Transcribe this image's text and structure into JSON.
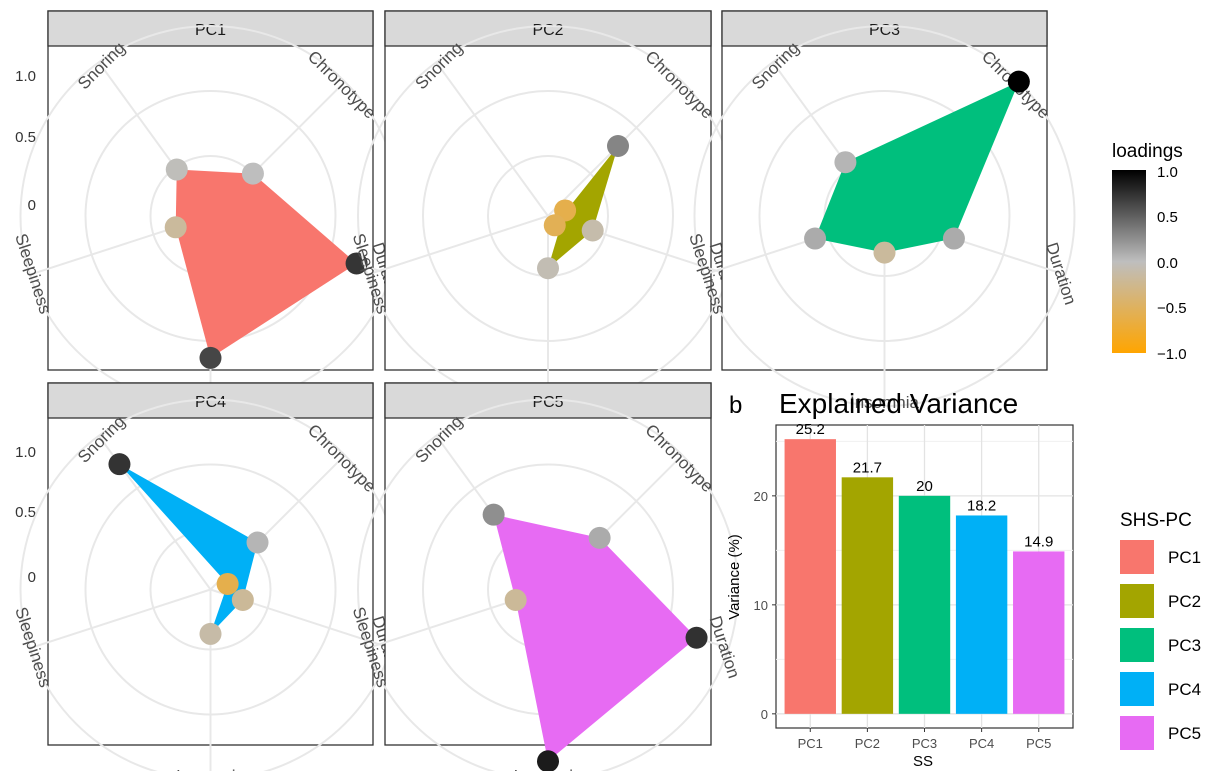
{
  "chart_data": [
    {
      "type": "radar",
      "panels": [
        "PC1",
        "PC2",
        "PC3",
        "PC4",
        "PC5"
      ],
      "axes": [
        "Chronotype",
        "Duration",
        "Insomnia",
        "Sleepiness",
        "Snoring"
      ],
      "radial_ticks": [
        "0",
        "0.5",
        "1.0"
      ],
      "series": [
        {
          "panel": "PC1",
          "color": "#F8766D",
          "values": [
            0.0,
            0.72,
            0.63,
            -0.18,
            -0.02
          ]
        },
        {
          "panel": "PC2",
          "color": "#A3A500",
          "values": [
            0.3,
            -0.1,
            -0.06,
            -0.6,
            -0.55
          ]
        },
        {
          "panel": "PC3",
          "color": "#00BF7D",
          "values": [
            1.0,
            0.1,
            -0.18,
            0.1,
            0.05
          ]
        },
        {
          "panel": "PC4",
          "color": "#00B0F6",
          "values": [
            0.05,
            -0.2,
            -0.12,
            -0.6,
            0.73
          ]
        },
        {
          "panel": "PC5",
          "color": "#E76BF3",
          "values": [
            0.1,
            0.74,
            0.86,
            -0.2,
            0.25
          ]
        }
      ],
      "legend": {
        "title": "loadings",
        "ticks": [
          "1.0",
          "0.5",
          "0.0",
          "−0.5",
          "−1.0"
        ],
        "colors": {
          "high": "#000000",
          "mid": "#bebebe",
          "low": "#FFA500"
        }
      }
    },
    {
      "type": "bar",
      "panel_label": "b",
      "title": "Explained Variance",
      "xlabel": "SS",
      "ylabel": "Variance (%)",
      "categories": [
        "PC1",
        "PC2",
        "PC3",
        "PC4",
        "PC5"
      ],
      "values": [
        25.2,
        21.7,
        20,
        18.2,
        14.9
      ],
      "value_labels": [
        "25.2",
        "21.7",
        "20",
        "18.2",
        "14.9"
      ],
      "y_ticks": [
        "0",
        "10",
        "20"
      ],
      "ylim": [
        -1.3,
        26.5
      ],
      "colors": [
        "#F8766D",
        "#A3A500",
        "#00BF7D",
        "#00B0F6",
        "#E76BF3"
      ],
      "legend": {
        "title": "SHS-PC",
        "entries": [
          "PC1",
          "PC2",
          "PC3",
          "PC4",
          "PC5"
        ]
      }
    }
  ]
}
